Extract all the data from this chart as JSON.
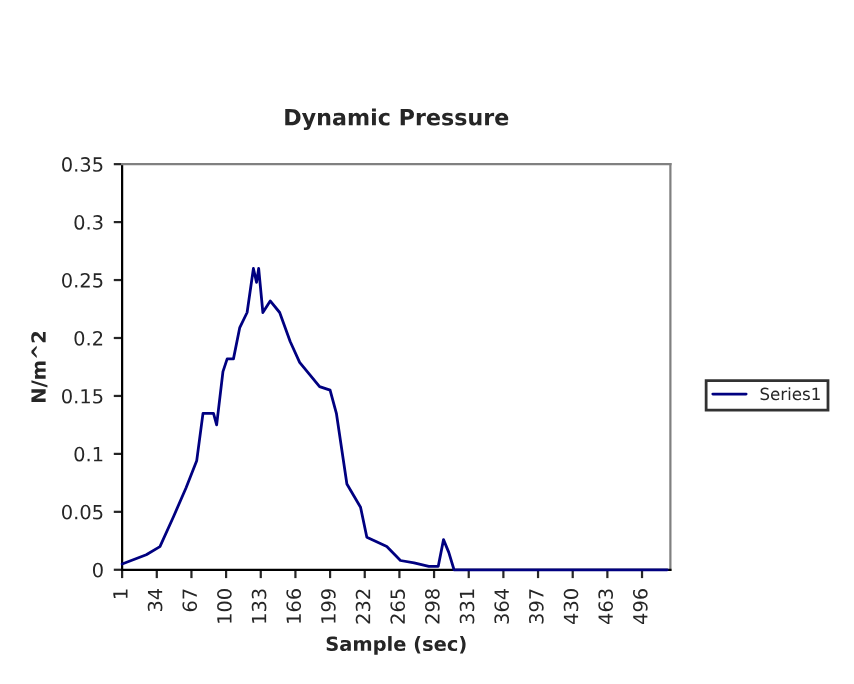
{
  "chart_data": {
    "type": "line",
    "title": "Dynamic Pressure",
    "xlabel": "Sample (sec)",
    "ylabel": "N/m^2",
    "series": [
      {
        "name": "Series1",
        "color": "#000080",
        "x": [
          1,
          24,
          37,
          50,
          62,
          72,
          78,
          88,
          91,
          97,
          101,
          107,
          113,
          120,
          126,
          129,
          131,
          135,
          142,
          151,
          161,
          170,
          180,
          189,
          199,
          205,
          215,
          228,
          234,
          253,
          266,
          279,
          293,
          298,
          302,
          307,
          312,
          317,
          330,
          400,
          520
        ],
        "values": [
          0.005,
          0.013,
          0.02,
          0.046,
          0.071,
          0.094,
          0.135,
          0.135,
          0.125,
          0.171,
          0.182,
          0.182,
          0.209,
          0.222,
          0.26,
          0.248,
          0.26,
          0.222,
          0.232,
          0.222,
          0.197,
          0.179,
          0.168,
          0.158,
          0.155,
          0.135,
          0.074,
          0.054,
          0.028,
          0.02,
          0.008,
          0.006,
          0.003,
          0.003,
          0.003,
          0.026,
          0.015,
          0,
          0,
          0,
          0
        ]
      }
    ],
    "xlim": [
      1,
      523
    ],
    "xticks": [
      1,
      34,
      67,
      100,
      133,
      166,
      199,
      232,
      265,
      298,
      331,
      364,
      397,
      430,
      463,
      496
    ],
    "ylim": [
      0,
      0.35
    ],
    "yticks": [
      0,
      0.05,
      0.1,
      0.15,
      0.2,
      0.25,
      0.3,
      0.35
    ],
    "grid": false,
    "legend": "right",
    "marker": "none",
    "line_style": "solid"
  }
}
